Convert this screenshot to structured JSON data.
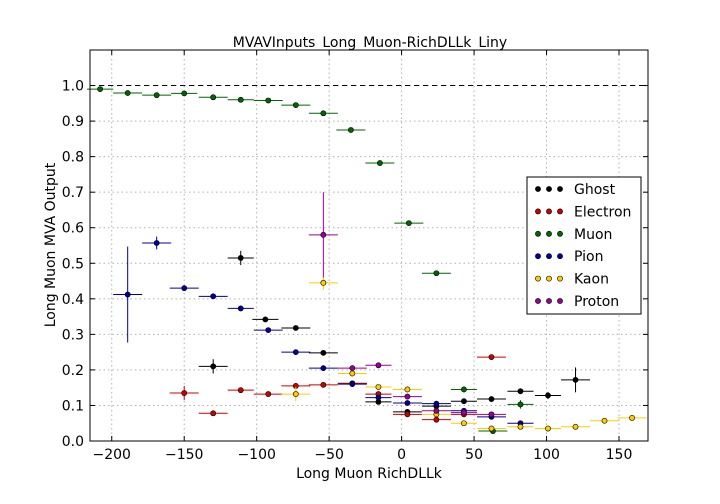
{
  "chart_data": {
    "type": "scatter",
    "title": "MVAVInputs_Long_Muon-RichDLLk_Liny",
    "xlabel": "Long Muon RichDLLk",
    "ylabel": "Long Muon MVA Output",
    "xlim": [
      -215,
      170
    ],
    "ylim": [
      0.0,
      1.1
    ],
    "xticks": [
      -200,
      -150,
      -100,
      -50,
      0,
      50,
      100,
      150
    ],
    "yticks": [
      0.0,
      0.1,
      0.2,
      0.3,
      0.4,
      0.5,
      0.6,
      0.7,
      0.8,
      0.9,
      1.0
    ],
    "reference_line": 1.0,
    "grid": true,
    "legend_position": "right",
    "series": [
      {
        "name": "Ghost",
        "color": "#000000",
        "points": [
          {
            "x": -130,
            "y": 0.21,
            "xerr": 10,
            "yerr": 0.02
          },
          {
            "x": -111,
            "y": 0.515,
            "xerr": 9,
            "yerr": 0.02
          },
          {
            "x": -94,
            "y": 0.342,
            "xerr": 9,
            "yerr": 0.006
          },
          {
            "x": -73,
            "y": 0.318,
            "xerr": 10,
            "yerr": 0.006
          },
          {
            "x": -54,
            "y": 0.248,
            "xerr": 10,
            "yerr": 0.004
          },
          {
            "x": -34,
            "y": 0.162,
            "xerr": 10,
            "yerr": 0.004
          },
          {
            "x": -16,
            "y": 0.11,
            "xerr": 9,
            "yerr": 0.004
          },
          {
            "x": 4,
            "y": 0.082,
            "xerr": 10,
            "yerr": 0.004
          },
          {
            "x": 24,
            "y": 0.098,
            "xerr": 10,
            "yerr": 0.004
          },
          {
            "x": 43,
            "y": 0.112,
            "xerr": 9,
            "yerr": 0.004
          },
          {
            "x": 62,
            "y": 0.118,
            "xerr": 10,
            "yerr": 0.006
          },
          {
            "x": 82,
            "y": 0.14,
            "xerr": 9,
            "yerr": 0.008
          },
          {
            "x": 101,
            "y": 0.128,
            "xerr": 9,
            "yerr": 0.01
          },
          {
            "x": 120,
            "y": 0.172,
            "xerr": 10,
            "yerr": 0.035
          }
        ]
      },
      {
        "name": "Electron",
        "color": "#cc0000",
        "points": [
          {
            "x": -150,
            "y": 0.135,
            "xerr": 10,
            "yerr": 0.02
          },
          {
            "x": -130,
            "y": 0.078,
            "xerr": 10,
            "yerr": 0.004
          },
          {
            "x": -111,
            "y": 0.143,
            "xerr": 9,
            "yerr": 0.006
          },
          {
            "x": -92,
            "y": 0.132,
            "xerr": 10,
            "yerr": 0.004
          },
          {
            "x": -73,
            "y": 0.155,
            "xerr": 10,
            "yerr": 0.004
          },
          {
            "x": -54,
            "y": 0.158,
            "xerr": 10,
            "yerr": 0.004
          },
          {
            "x": -34,
            "y": 0.162,
            "xerr": 10,
            "yerr": 0.004
          },
          {
            "x": -16,
            "y": 0.132,
            "xerr": 9,
            "yerr": 0.004
          },
          {
            "x": 4,
            "y": 0.075,
            "xerr": 10,
            "yerr": 0.004
          },
          {
            "x": 24,
            "y": 0.06,
            "xerr": 10,
            "yerr": 0.004
          },
          {
            "x": 43,
            "y": 0.075,
            "xerr": 9,
            "yerr": 0.004
          },
          {
            "x": 62,
            "y": 0.236,
            "xerr": 10,
            "yerr": 0.006
          }
        ]
      },
      {
        "name": "Muon",
        "color": "#006600",
        "points": [
          {
            "x": -208,
            "y": 0.99,
            "xerr": 9,
            "yerr": 0.003
          },
          {
            "x": -189,
            "y": 0.979,
            "xerr": 10,
            "yerr": 0.003
          },
          {
            "x": -169,
            "y": 0.973,
            "xerr": 10,
            "yerr": 0.003
          },
          {
            "x": -150,
            "y": 0.978,
            "xerr": 9,
            "yerr": 0.003
          },
          {
            "x": -130,
            "y": 0.967,
            "xerr": 10,
            "yerr": 0.003
          },
          {
            "x": -111,
            "y": 0.96,
            "xerr": 9,
            "yerr": 0.003
          },
          {
            "x": -92,
            "y": 0.958,
            "xerr": 10,
            "yerr": 0.003
          },
          {
            "x": -73,
            "y": 0.945,
            "xerr": 10,
            "yerr": 0.003
          },
          {
            "x": -54,
            "y": 0.922,
            "xerr": 10,
            "yerr": 0.003
          },
          {
            "x": -35,
            "y": 0.875,
            "xerr": 10,
            "yerr": 0.003
          },
          {
            "x": -15,
            "y": 0.782,
            "xerr": 10,
            "yerr": 0.004
          },
          {
            "x": 5,
            "y": 0.613,
            "xerr": 10,
            "yerr": 0.005
          },
          {
            "x": 24,
            "y": 0.472,
            "xerr": 10,
            "yerr": 0.005
          },
          {
            "x": 43,
            "y": 0.145,
            "xerr": 9,
            "yerr": 0.005
          },
          {
            "x": 63,
            "y": 0.028,
            "xerr": 10,
            "yerr": 0.006
          },
          {
            "x": 82,
            "y": 0.103,
            "xerr": 9,
            "yerr": 0.012
          }
        ]
      },
      {
        "name": "Pion",
        "color": "#000099",
        "points": [
          {
            "x": -189,
            "y": 0.412,
            "xerr": 10,
            "yerr": 0.135
          },
          {
            "x": -169,
            "y": 0.557,
            "xerr": 10,
            "yerr": 0.018
          },
          {
            "x": -150,
            "y": 0.43,
            "xerr": 10,
            "yerr": 0.004
          },
          {
            "x": -130,
            "y": 0.407,
            "xerr": 10,
            "yerr": 0.004
          },
          {
            "x": -111,
            "y": 0.373,
            "xerr": 9,
            "yerr": 0.004
          },
          {
            "x": -92,
            "y": 0.312,
            "xerr": 10,
            "yerr": 0.004
          },
          {
            "x": -73,
            "y": 0.25,
            "xerr": 10,
            "yerr": 0.004
          },
          {
            "x": -54,
            "y": 0.205,
            "xerr": 10,
            "yerr": 0.004
          },
          {
            "x": -34,
            "y": 0.16,
            "xerr": 10,
            "yerr": 0.004
          },
          {
            "x": -16,
            "y": 0.122,
            "xerr": 9,
            "yerr": 0.004
          },
          {
            "x": 4,
            "y": 0.107,
            "xerr": 10,
            "yerr": 0.004
          },
          {
            "x": 24,
            "y": 0.105,
            "xerr": 10,
            "yerr": 0.004
          },
          {
            "x": 43,
            "y": 0.085,
            "xerr": 9,
            "yerr": 0.004
          },
          {
            "x": 62,
            "y": 0.068,
            "xerr": 10,
            "yerr": 0.004
          },
          {
            "x": 82,
            "y": 0.05,
            "xerr": 9,
            "yerr": 0.004
          }
        ]
      },
      {
        "name": "Kaon",
        "color": "#ffcc00",
        "points": [
          {
            "x": -73,
            "y": 0.132,
            "xerr": 10,
            "yerr": 0.02
          },
          {
            "x": -54,
            "y": 0.445,
            "xerr": 10,
            "yerr": 0.02
          },
          {
            "x": -34,
            "y": 0.19,
            "xerr": 10,
            "yerr": 0.006
          },
          {
            "x": -16,
            "y": 0.152,
            "xerr": 9,
            "yerr": 0.004
          },
          {
            "x": 4,
            "y": 0.145,
            "xerr": 10,
            "yerr": 0.004
          },
          {
            "x": 24,
            "y": 0.075,
            "xerr": 10,
            "yerr": 0.004
          },
          {
            "x": 43,
            "y": 0.05,
            "xerr": 9,
            "yerr": 0.004
          },
          {
            "x": 62,
            "y": 0.035,
            "xerr": 10,
            "yerr": 0.004
          },
          {
            "x": 82,
            "y": 0.04,
            "xerr": 9,
            "yerr": 0.004
          },
          {
            "x": 101,
            "y": 0.035,
            "xerr": 9,
            "yerr": 0.004
          },
          {
            "x": 120,
            "y": 0.04,
            "xerr": 10,
            "yerr": 0.004
          },
          {
            "x": 140,
            "y": 0.057,
            "xerr": 10,
            "yerr": 0.004
          },
          {
            "x": 159,
            "y": 0.065,
            "xerr": 10,
            "yerr": 0.004
          }
        ]
      },
      {
        "name": "Proton",
        "color": "#990099",
        "points": [
          {
            "x": -54,
            "y": 0.58,
            "xerr": 10,
            "yerr": 0.12
          },
          {
            "x": -34,
            "y": 0.205,
            "xerr": 10,
            "yerr": 0.008
          },
          {
            "x": -16,
            "y": 0.213,
            "xerr": 9,
            "yerr": 0.006
          },
          {
            "x": 4,
            "y": 0.125,
            "xerr": 10,
            "yerr": 0.005
          },
          {
            "x": 24,
            "y": 0.085,
            "xerr": 10,
            "yerr": 0.005
          },
          {
            "x": 43,
            "y": 0.08,
            "xerr": 9,
            "yerr": 0.005
          },
          {
            "x": 62,
            "y": 0.075,
            "xerr": 10,
            "yerr": 0.005
          }
        ]
      }
    ]
  }
}
